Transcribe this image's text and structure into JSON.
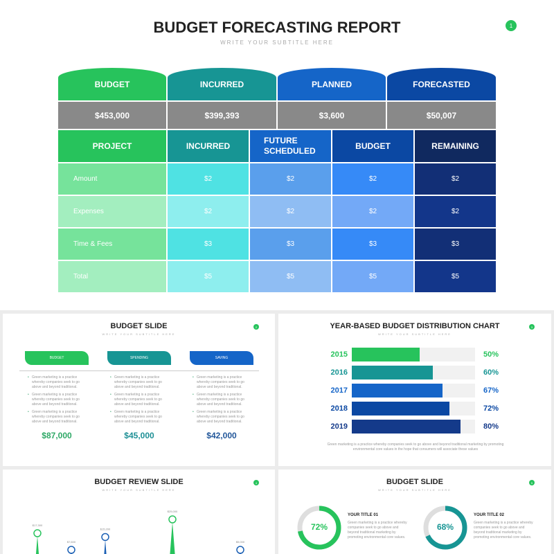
{
  "slide1": {
    "number": "1",
    "title": "BUDGET FORECASTING REPORT",
    "subtitle": "WRITE YOUR SUBTITLE HERE",
    "summary": [
      {
        "label": "BUDGET",
        "value": "$453,000",
        "color": "#27c35c"
      },
      {
        "label": "INCURRED",
        "value": "$399,393",
        "color": "#179594"
      },
      {
        "label": "PLANNED",
        "value": "$3,600",
        "color": "#1565c8"
      },
      {
        "label": "FORECASTED",
        "value": "$50,007",
        "color": "#0b48a3"
      }
    ],
    "summary_value_bg": "#898989",
    "table": {
      "headers": [
        {
          "label": "PROJECT",
          "color": "#27c35c"
        },
        {
          "label": "INCURRED",
          "color": "#179594"
        },
        {
          "label": "FUTURE SCHEDULED",
          "color": "#1565c8"
        },
        {
          "label": "BUDGET",
          "color": "#0b48a3"
        },
        {
          "label": "REMAINING",
          "color": "#10295f"
        }
      ],
      "rows": [
        [
          "Amount",
          "$2",
          "$2",
          "$2",
          "$2"
        ],
        [
          "Expenses",
          "$2",
          "$2",
          "$2",
          "$2"
        ],
        [
          "Time & Fees",
          "$3",
          "$3",
          "$3",
          "$3"
        ],
        [
          "Total",
          "$5",
          "$5",
          "$5",
          "$5"
        ]
      ],
      "row_colors_odd": [
        "#76e39b",
        "#4fe2e3",
        "#5a9fec",
        "#368af7",
        "#122f76"
      ],
      "row_colors_even": [
        "#a3eebf",
        "#8eeeee",
        "#8fbdf3",
        "#73a9f7",
        "#13368a"
      ]
    }
  },
  "slide2": {
    "number": "2",
    "title": "BUDGET SLIDE",
    "subtitle": "WRITE YOUR SUBTITLE HERE",
    "columns": [
      {
        "label": "BUDGET",
        "color": "#27c35c",
        "value": "$87,000",
        "value_color": "#2ea866",
        "bullets": [
          "Green marketing is a practice whereby companies seek to go above and beyond traditional.",
          "Green marketing is a practice whereby companies seek to go above and beyond traditional.",
          "Green marketing is a practice whereby companies seek to go above and beyond traditional."
        ]
      },
      {
        "label": "SPENDING",
        "color": "#179594",
        "value": "$45,000",
        "value_color": "#1d8f95",
        "bullets": [
          "Green marketing is a practice whereby companies seek to go above and beyond traditional.",
          "Green marketing is a practice whereby companies seek to go above and beyond traditional.",
          "Green marketing is a practice whereby companies seek to go above and beyond traditional."
        ]
      },
      {
        "label": "SAVING",
        "color": "#1565c8",
        "value": "$42,000",
        "value_color": "#22579a",
        "bullets": [
          "Green marketing is a practice whereby companies seek to go above and beyond traditional.",
          "Green marketing is a practice whereby companies seek to go above and beyond traditional.",
          "Green marketing is a practice whereby companies seek to go above and beyond traditional."
        ]
      }
    ]
  },
  "slide3": {
    "number": "3",
    "title": "YEAR-BASED BUDGET DISTRIBUTION CHART",
    "subtitle": "WRITE YOUR SUBTITLE HERE",
    "caption": "Green marketing is a practice whereby companies seek to go above and beyond traditional marketing by promoting environmental core values in the hope that consumers will associate these values",
    "chart_data": {
      "type": "bar",
      "orientation": "horizontal",
      "categories": [
        "2015",
        "2016",
        "2017",
        "2018",
        "2019"
      ],
      "values": [
        50,
        60,
        67,
        72,
        80
      ],
      "value_labels": [
        "50%",
        "60%",
        "67%",
        "72%",
        "80%"
      ],
      "xlim": [
        0,
        100
      ],
      "colors": [
        "#27c35c",
        "#179594",
        "#1565c8",
        "#0b48a3",
        "#143a8a"
      ],
      "track_color": "#f1f1f1"
    }
  },
  "slide4": {
    "number": "4",
    "title": "BUDGET REVIEW SLIDE",
    "subtitle": "WRITE YOUR SUBTITLE HERE",
    "chart_data": {
      "type": "lollipop",
      "labels": [
        "$17,300",
        "$7,600",
        "$15,200",
        "$25,000",
        "$5,000"
      ],
      "values": [
        17300,
        7600,
        15200,
        25000,
        5000
      ],
      "colors": [
        "#27c35c",
        "#1a5fb4",
        "#1a5fb4",
        "#27c35c",
        "#1a5fb4"
      ]
    }
  },
  "slide5": {
    "number": "5",
    "title": "BUDGET SLIDE",
    "subtitle": "WRITE YOUR SUBTITLE HERE",
    "items": [
      {
        "title": "YOUR TITLE 01",
        "percent": 72,
        "label": "72%",
        "color": "#27c35c",
        "text": "Green marketing is a practice whereby companies seek to go above and beyond traditional marketing by promoting environmental core values."
      },
      {
        "title": "YOUR TITLE 02",
        "percent": 68,
        "label": "68%",
        "color": "#179594",
        "text": "Green marketing is a practice whereby companies seek to go above and beyond traditional marketing by promoting environmental core values."
      }
    ]
  }
}
